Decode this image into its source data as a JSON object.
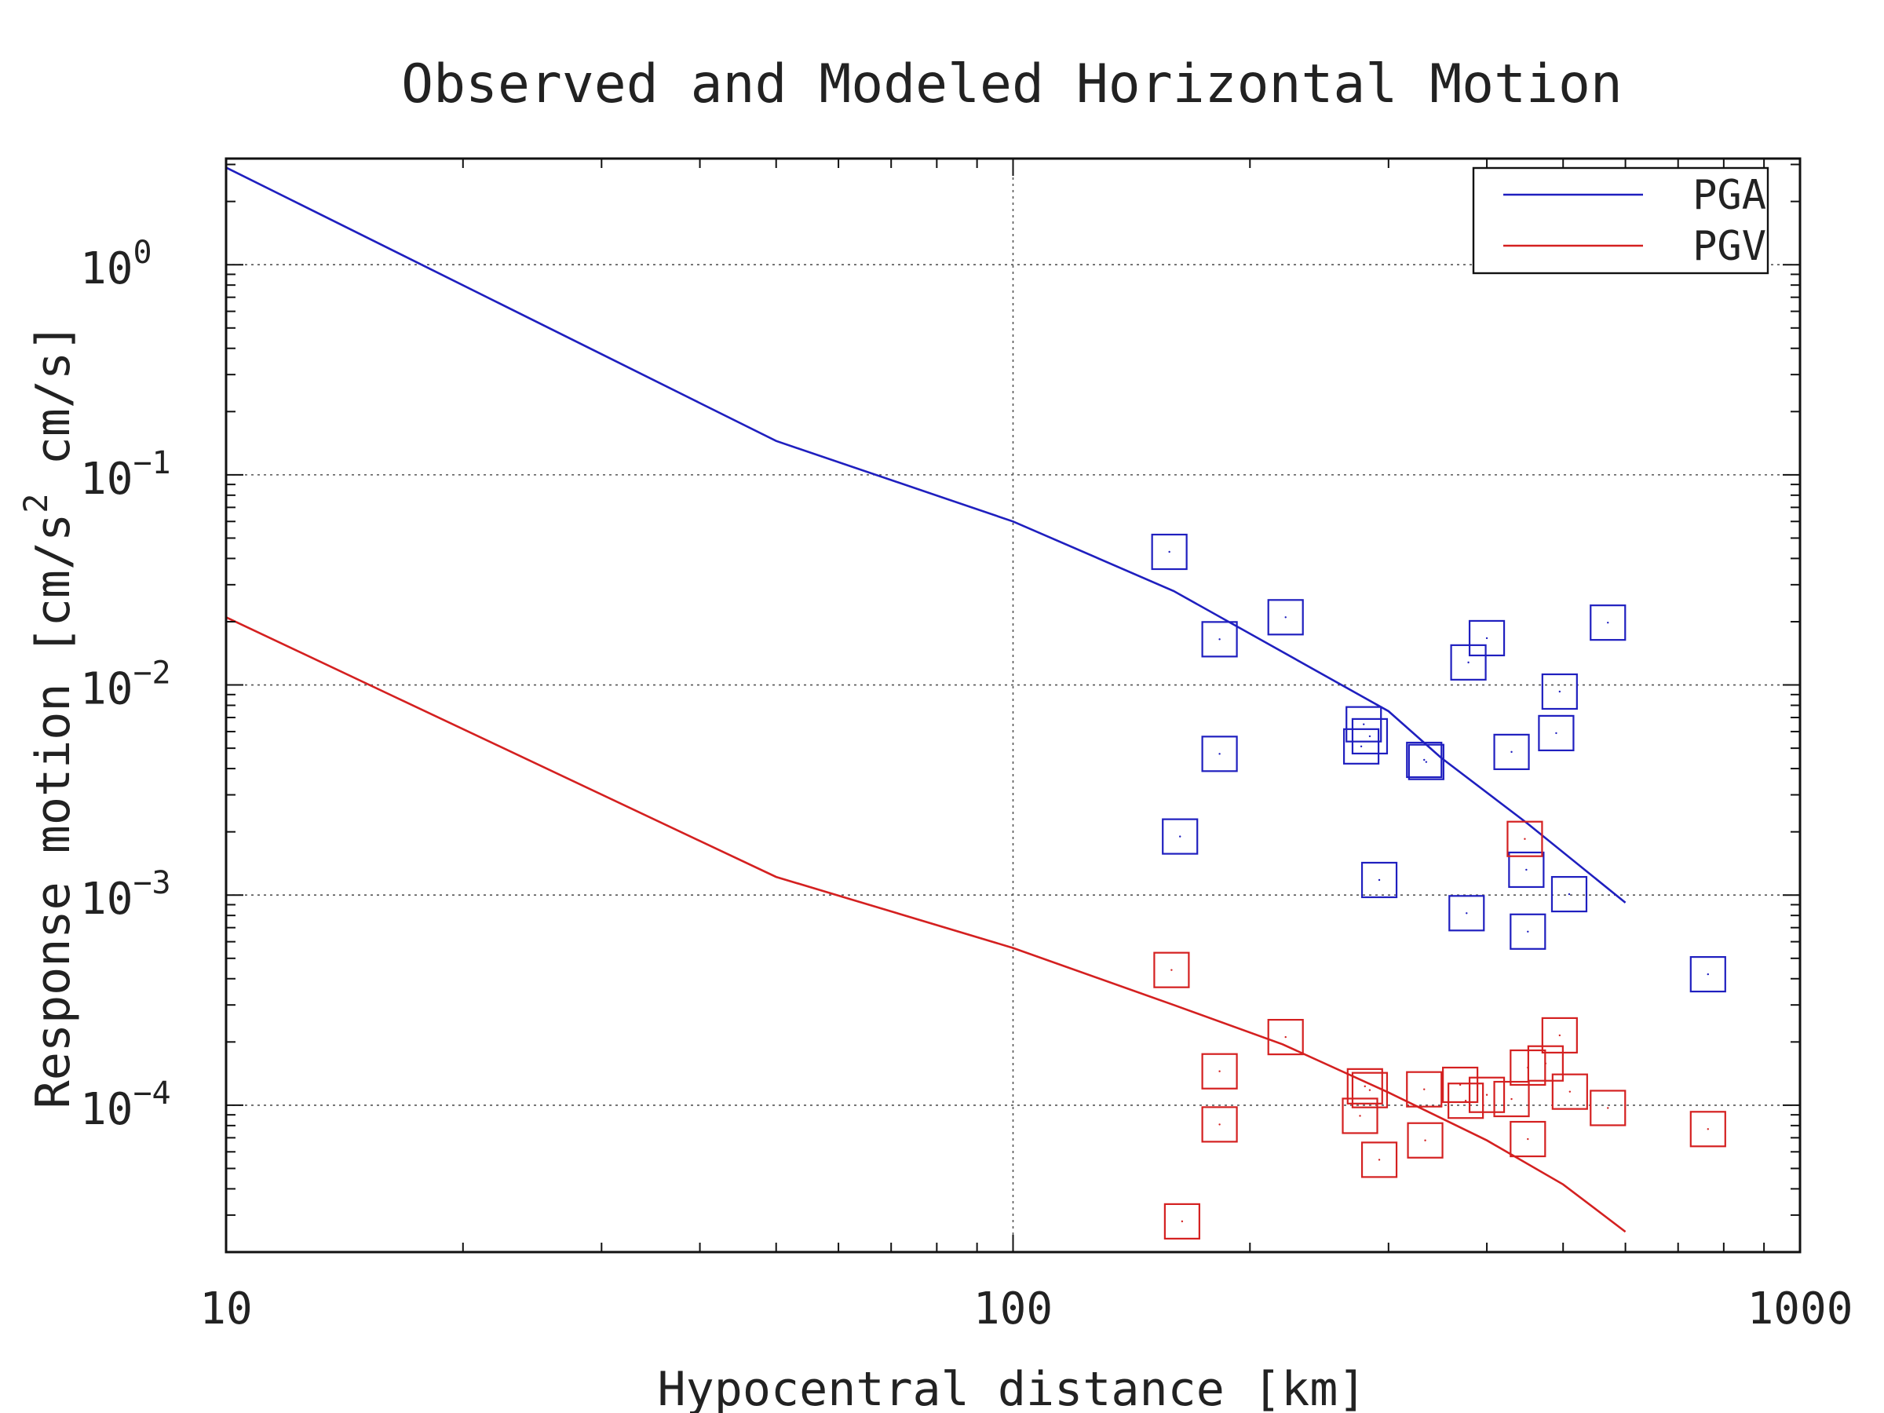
{
  "chart_data": {
    "type": "scatter",
    "title": "Observed and Modeled Horizontal Motion",
    "xlabel": "Hypocentral distance [km]",
    "ylabel": "Response motion [cm/s² cm/s]",
    "ylabel_parts": {
      "before": "Response motion [cm/s",
      "superscript": "2",
      "after": "  cm/s]"
    },
    "x_scale": "log",
    "y_scale": "log",
    "xlim": [
      10,
      1000
    ],
    "ylim": [
      2e-05,
      3.2
    ],
    "x_ticks": [
      {
        "value": 10,
        "label": "10"
      },
      {
        "value": 100,
        "label": "100"
      },
      {
        "value": 1000,
        "label": "1000"
      }
    ],
    "y_ticks": [
      {
        "value": 1,
        "base": "10",
        "exp": "0"
      },
      {
        "value": 0.1,
        "base": "10",
        "exp": "−1"
      },
      {
        "value": 0.01,
        "base": "10",
        "exp": "−2"
      },
      {
        "value": 0.001,
        "base": "10",
        "exp": "−3"
      },
      {
        "value": 0.0001,
        "base": "10",
        "exp": "−4"
      }
    ],
    "grid": true,
    "legend": "top-right",
    "series": [
      {
        "name": "PGA",
        "color": "#1f1fbf",
        "model_line": {
          "x": [
            10,
            50,
            100,
            160,
            300,
            350,
            450,
            600
          ],
          "y": [
            2.9,
            0.145,
            0.06,
            0.028,
            0.0075,
            0.0045,
            0.0022,
            0.00092
          ]
        },
        "observed": {
          "x": [
            158,
            163,
            183,
            183,
            222,
            277,
            279,
            284,
            292,
            333,
            335,
            377,
            379,
            400,
            430,
            449,
            451,
            490,
            495,
            509,
            570,
            764
          ],
          "y": [
            0.043,
            0.0019,
            0.0165,
            0.0047,
            0.021,
            0.0051,
            0.0065,
            0.0057,
            0.00118,
            0.0044,
            0.0043,
            0.00082,
            0.0128,
            0.0167,
            0.0048,
            0.00132,
            0.00067,
            0.0059,
            0.0093,
            0.00101,
            0.0198,
            0.00042
          ]
        }
      },
      {
        "name": "PGV",
        "color": "#d42020",
        "model_line": {
          "x": [
            10,
            50,
            100,
            160,
            220,
            300,
            400,
            500,
            600
          ],
          "y": [
            0.021,
            0.00122,
            0.00056,
            0.0003,
            0.000195,
            0.000115,
            6.8e-05,
            4.2e-05,
            2.5e-05
          ]
        },
        "observed": {
          "x": [
            159,
            164,
            183,
            183,
            222,
            276,
            280,
            284,
            292,
            333,
            334,
            370,
            376,
            400,
            430,
            447,
            451,
            451,
            475,
            495,
            510,
            570,
            764
          ],
          "y": [
            0.00044,
            2.8e-05,
            0.000145,
            8.1e-05,
            0.000211,
            8.9e-05,
            0.000123,
            0.000118,
            5.5e-05,
            0.000119,
            6.8e-05,
            0.000125,
            0.000105,
            0.000112,
            0.000107,
            0.00185,
            0.000151,
            6.9e-05,
            0.000158,
            0.000215,
            0.000116,
            9.7e-05,
            7.7e-05
          ]
        }
      }
    ]
  }
}
